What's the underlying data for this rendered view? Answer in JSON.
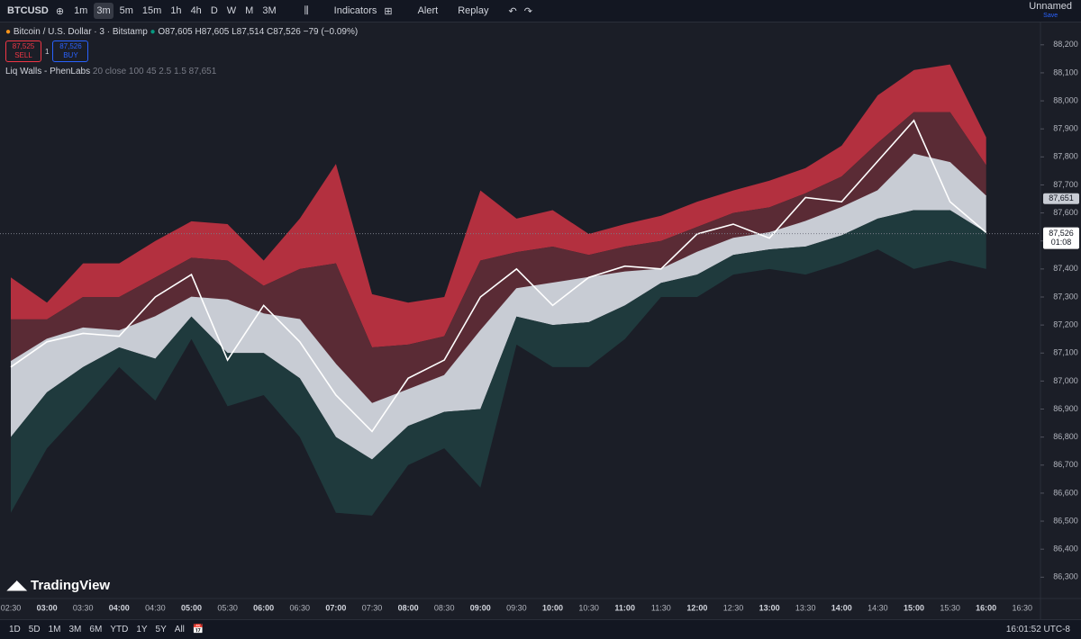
{
  "toolbar": {
    "symbol": "BTCUSD",
    "intervals": [
      "1m",
      "3m",
      "5m",
      "15m",
      "1h",
      "4h",
      "D",
      "W",
      "M",
      "3M"
    ],
    "active_interval": 1,
    "indicators": "Indicators",
    "alert": "Alert",
    "replay": "Replay",
    "layout": "Unnamed",
    "save": "Save"
  },
  "header": {
    "title": "Bitcoin / U.S. Dollar · 3 · Bitstamp",
    "ohlc": "O87,605 H87,605 L87,514 C87,526 −79 (−0.09%)",
    "sell_price": "87,525",
    "sell": "SELL",
    "spread": "1",
    "buy_price": "87,526",
    "buy": "BUY",
    "indicator": "Liq Walls - PhenLabs",
    "indicator_params": "20 close 100 45 2.5 1.5",
    "indicator_value": "87,651"
  },
  "chart_data": {
    "type": "band-line",
    "x": [
      "02:30",
      "03:00",
      "03:30",
      "04:00",
      "04:30",
      "05:00",
      "05:30",
      "06:00",
      "06:30",
      "07:00",
      "07:30",
      "08:00",
      "08:30",
      "09:00",
      "09:30",
      "10:00",
      "10:30",
      "11:00",
      "11:30",
      "12:00",
      "12:30",
      "13:00",
      "13:30",
      "14:00",
      "14:30",
      "15:00",
      "15:30",
      "16:00",
      "16:30"
    ],
    "series": [
      {
        "color": "#b3303f",
        "values": [
          87370,
          87280,
          87420,
          87420,
          87500,
          87570,
          87560,
          87430,
          87580,
          87775,
          87310,
          87280,
          87300,
          87680,
          87580,
          87610,
          87525,
          87560,
          87590,
          87640,
          87680,
          87715,
          87760,
          87840,
          88020,
          88110,
          88130,
          87870,
          null
        ]
      },
      {
        "color": "#5a2b35",
        "values": [
          87220,
          87220,
          87300,
          87300,
          87370,
          87440,
          87430,
          87340,
          87400,
          87420,
          87120,
          87130,
          87160,
          87430,
          87460,
          87480,
          87450,
          87480,
          87500,
          87550,
          87600,
          87620,
          87670,
          87730,
          87850,
          87960,
          87960,
          87770,
          null
        ]
      },
      {
        "color": "#c8ccd4",
        "values": [
          87070,
          87150,
          87190,
          87180,
          87230,
          87300,
          87290,
          87240,
          87220,
          87060,
          86920,
          86970,
          87020,
          87180,
          87330,
          87350,
          87370,
          87390,
          87400,
          87460,
          87510,
          87530,
          87570,
          87620,
          87680,
          87810,
          87780,
          87660,
          null
        ]
      },
      {
        "color": "#1f3a3d",
        "values": [
          86800,
          86960,
          87050,
          87120,
          87080,
          87230,
          87100,
          87100,
          87010,
          86800,
          86720,
          86840,
          86890,
          86900,
          87230,
          87200,
          87210,
          87270,
          87350,
          87380,
          87450,
          87470,
          87480,
          87520,
          87580,
          87610,
          87610,
          87530,
          null
        ]
      },
      {
        "color": "#1e6d66",
        "values": [
          86530,
          86760,
          86900,
          87050,
          86930,
          87150,
          86910,
          86950,
          86800,
          86530,
          86520,
          86700,
          86760,
          86620,
          87130,
          87050,
          87050,
          87150,
          87300,
          87300,
          87380,
          87400,
          87380,
          87420,
          87470,
          87400,
          87430,
          87400,
          null
        ]
      },
      {
        "color": "#ffffff",
        "values": [
          87050,
          87140,
          87170,
          87160,
          87300,
          87380,
          87075,
          87270,
          87140,
          86950,
          86820,
          87010,
          87075,
          87300,
          87400,
          87270,
          87370,
          87410,
          87400,
          87525,
          87560,
          87510,
          87655,
          87640,
          87785,
          87930,
          87640,
          87530,
          null
        ]
      }
    ],
    "ylim": [
      86240,
      88270
    ],
    "yticks": [
      {
        "value": 86300,
        "label": "86,300"
      },
      {
        "value": 86400,
        "label": "86,400"
      },
      {
        "value": 86500,
        "label": "86,500"
      },
      {
        "value": 86600,
        "label": "86,600"
      },
      {
        "value": 86700,
        "label": "86,700"
      },
      {
        "value": 86800,
        "label": "86,800"
      },
      {
        "value": 86900,
        "label": "86,900"
      },
      {
        "value": 87000,
        "label": "87,000"
      },
      {
        "value": 87100,
        "label": "87,100"
      },
      {
        "value": 87200,
        "label": "87,200"
      },
      {
        "value": 87300,
        "label": "87,300"
      },
      {
        "value": 87400,
        "label": "87,400"
      },
      {
        "value": 87500,
        "label": "87,500"
      },
      {
        "value": 87600,
        "label": "87,600"
      },
      {
        "value": 87700,
        "label": "87,700"
      },
      {
        "value": 87800,
        "label": "87,800"
      },
      {
        "value": 87900,
        "label": "87,900"
      },
      {
        "value": 88000,
        "label": "88,000"
      },
      {
        "value": 88100,
        "label": "88,100"
      },
      {
        "value": 88200,
        "label": "88,200"
      }
    ],
    "indicator_tag": {
      "value": 87651,
      "label": "87,651"
    },
    "last_price": {
      "value": 87526,
      "label": "87,526"
    },
    "countdown": "01:08"
  },
  "footer": {
    "ranges": [
      "1D",
      "5D",
      "1M",
      "3M",
      "6M",
      "YTD",
      "1Y",
      "5Y",
      "All"
    ],
    "clock": "16:01:52 UTC-8",
    "brand": "TradingView"
  }
}
